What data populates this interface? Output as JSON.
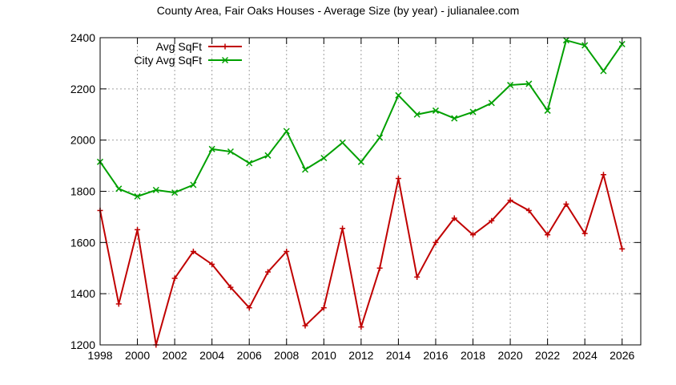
{
  "chart_data": {
    "type": "line",
    "title": "County Area, Fair Oaks Houses - Average Size (by year) - julianalee.com",
    "xlabel": "",
    "ylabel": "",
    "xlim": [
      1998,
      2027
    ],
    "ylim": [
      1200,
      2400
    ],
    "x_ticks": [
      1998,
      2000,
      2002,
      2004,
      2006,
      2008,
      2010,
      2012,
      2014,
      2016,
      2018,
      2020,
      2022,
      2024,
      2026
    ],
    "y_ticks": [
      1200,
      1400,
      1600,
      1800,
      2000,
      2200,
      2400
    ],
    "grid": true,
    "legend_position": "top-left",
    "x": [
      1998,
      1999,
      2000,
      2001,
      2002,
      2003,
      2004,
      2005,
      2006,
      2007,
      2008,
      2009,
      2010,
      2011,
      2012,
      2013,
      2014,
      2015,
      2016,
      2017,
      2018,
      2019,
      2020,
      2021,
      2022,
      2023,
      2024,
      2025,
      2026
    ],
    "series": [
      {
        "name": "Avg SqFt",
        "color": "#c00000",
        "marker": "plus",
        "values": [
          1725,
          1360,
          1650,
          1200,
          1460,
          1565,
          1515,
          1425,
          1345,
          1485,
          1565,
          1275,
          1345,
          1655,
          1270,
          1500,
          1850,
          1465,
          1600,
          1695,
          1630,
          1685,
          1765,
          1725,
          1630,
          1750,
          1635,
          1865,
          1575
        ]
      },
      {
        "name": "City Avg SqFt",
        "color": "#00a000",
        "marker": "x",
        "values": [
          1915,
          1810,
          1780,
          1805,
          1795,
          1825,
          1965,
          1955,
          1910,
          1940,
          2035,
          1885,
          1930,
          1990,
          1915,
          2010,
          2175,
          2100,
          2115,
          2085,
          2110,
          2145,
          2215,
          2220,
          2115,
          2390,
          2370,
          2270,
          2375
        ]
      }
    ]
  }
}
